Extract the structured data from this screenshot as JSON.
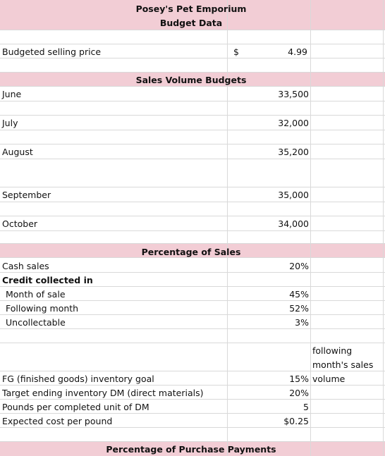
{
  "header": {
    "company": "Posey's Pet Emporium",
    "subtitle": "Budget Data"
  },
  "selling_price": {
    "label": "Budgeted selling price",
    "currency": "$",
    "value": "4.99"
  },
  "sales_volume": {
    "title": "Sales Volume Budgets",
    "months": [
      {
        "label": "June",
        "value": "33,500"
      },
      {
        "label": "July",
        "value": "32,000"
      },
      {
        "label": "August",
        "value": "35,200"
      },
      {
        "label": "September",
        "value": "35,000"
      },
      {
        "label": "October",
        "value": "34,000"
      }
    ]
  },
  "percentage_of_sales": {
    "title": "Percentage of Sales",
    "cash_sales": {
      "label": "Cash sales",
      "value": "20%"
    },
    "credit_heading": "Credit collected in",
    "credit": [
      {
        "label": "Month of sale",
        "value": "45%"
      },
      {
        "label": "Following month",
        "value": "52%"
      },
      {
        "label": "Uncollectable",
        "value": "3%"
      }
    ]
  },
  "inventory": {
    "note_line1": "following",
    "note_line2": "month's sales",
    "note_line3": "volume",
    "fg_goal": {
      "label": "FG (finished goods) inventory goal",
      "value": "15%"
    },
    "target_dm": {
      "label": "Target ending inventory DM (direct materials)",
      "value": "20%"
    },
    "pounds_dm": {
      "label": "Pounds per completed unit of DM",
      "value": "5"
    },
    "cost_per_pound": {
      "label": "Expected cost per pound",
      "value": "$0.25"
    }
  },
  "purchase_payments": {
    "title": "Percentage of Purchase Payments"
  },
  "colors": {
    "band": "#f2cdd5",
    "grid": "#d9d9d9"
  }
}
